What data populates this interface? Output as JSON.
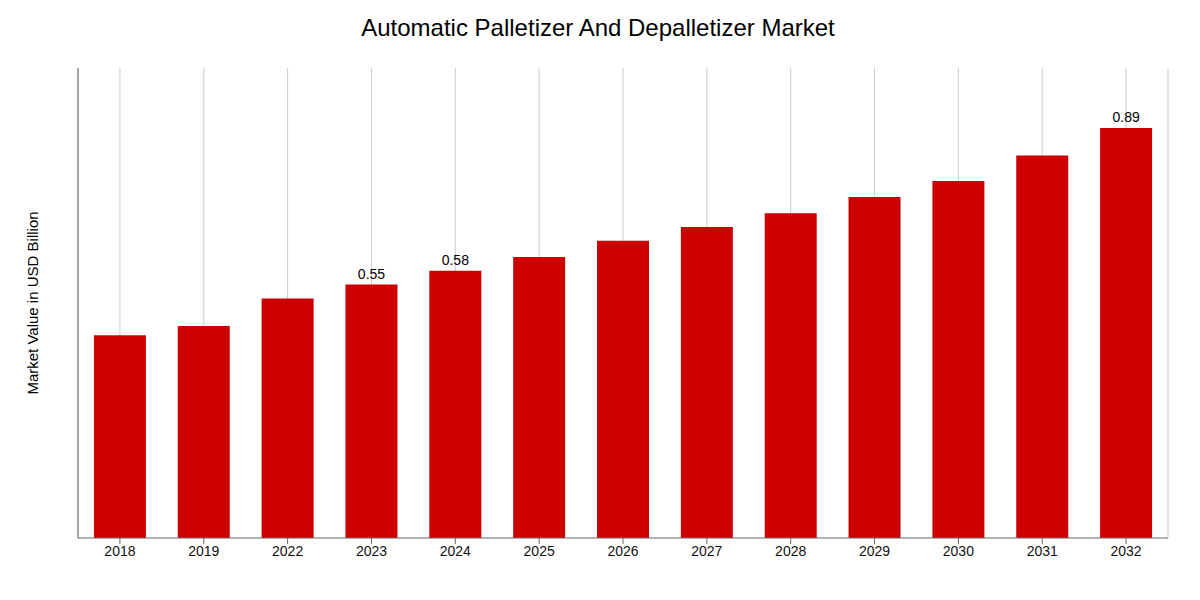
{
  "chart_data": {
    "type": "bar",
    "title": "Automatic Palletizer And Depalletizer Market",
    "ylabel": "Market Value in USD Billion",
    "categories": [
      "2018",
      "2019",
      "2022",
      "2023",
      "2024",
      "2025",
      "2026",
      "2027",
      "2028",
      "2029",
      "2030",
      "2031",
      "2032"
    ],
    "values": [
      0.44,
      0.46,
      0.52,
      0.55,
      0.58,
      0.61,
      0.645,
      0.675,
      0.705,
      0.74,
      0.775,
      0.83,
      0.89
    ],
    "value_labels": [
      null,
      null,
      null,
      "0.55",
      "0.58",
      null,
      null,
      null,
      null,
      null,
      null,
      null,
      "0.89"
    ],
    "color": "#cc0000",
    "ylim": [
      0,
      1.02
    ],
    "grid": true,
    "tick_labels": "x"
  }
}
